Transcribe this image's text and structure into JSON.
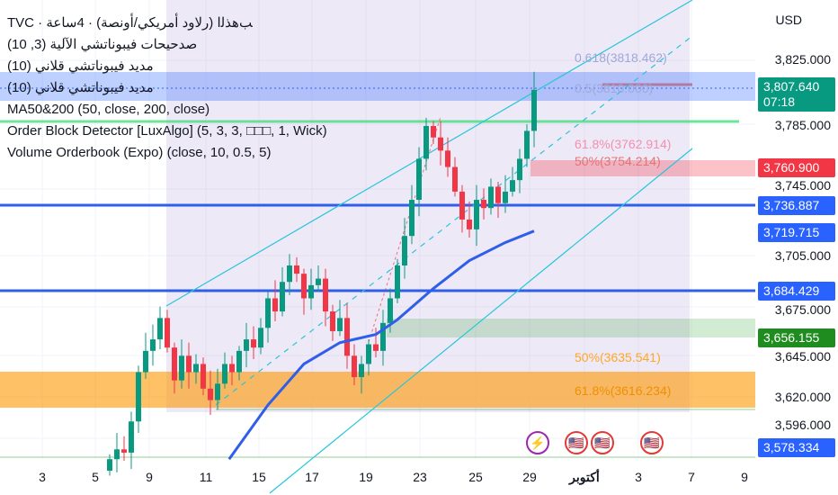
{
  "legend": [
    "TVC · ﺐﻫﺬﻟﺍ (ﺭﻻﻭﺩ ﺃﻣﺮﻳﻜﻲ/ﺃﻭﻧﺼﺔ) · 4ﺳﺎﻋﺔ",
    "ﺻﺪﺣﻴﺤﺎﺕ ﻓﻴﺒﻮﻧﺎﺗﺸﻲ ﺍﻵﻟﻴﺔ (3, 10)",
    "ﻣﺪﻳﺪ ﻓﻴﺒﻮﻧﺎﺗﺸﻲ ﻗﻠﺎﻧﻲ (10)",
    "ﻣﺪﻳﺪ ﻓﻴﺒﻮﻧﺎﺗﺸﻲ ﻗﻠﺎﻧﻲ (10)",
    "MA50&200 (50, close, 200, close)",
    "Order Block Detector [LuxAlgo] (5, 3, 3, □□□, 1, Wick)",
    "Volume Orderbook (Expo) (close, 10, 0.5, 5)"
  ],
  "currency": "USD",
  "price_axis": [
    "3,825.000",
    "3,785.000",
    "3,745.000",
    "3,705.000",
    "3,675.000",
    "3,645.000",
    "3,620.000",
    "3,596.000"
  ],
  "price_tags": [
    {
      "value": "3,807.640",
      "sub": "07:18",
      "color": "#089981"
    },
    {
      "value": "3,760.900",
      "color": "#f23645"
    },
    {
      "value": "3,736.887",
      "color": "#2962ff"
    },
    {
      "value": "3,719.715",
      "color": "#2962ff"
    },
    {
      "value": "3,684.429",
      "color": "#2962ff"
    },
    {
      "value": "3,656.155",
      "color": "#1e8c1e"
    },
    {
      "value": "3,578.334",
      "color": "#2962ff"
    }
  ],
  "fib_labels": [
    "0.618(3818.462)",
    "0.5(3810.000)",
    "61.8%(3762.914)",
    "50%(3754.214)",
    "50%(3635.541)",
    "61.8%(3616.234)"
  ],
  "x_axis": [
    "3",
    "5",
    "9",
    "11",
    "15",
    "17",
    "19",
    "23",
    "25",
    "29",
    "أكتوبر",
    "3",
    "7",
    "9"
  ],
  "events": [
    "lightning-icon",
    "us-flag-icon",
    "us-flag-icon",
    "us-flag-icon"
  ],
  "chart_data": {
    "type": "candlestick",
    "title": "TVC Gold 4h",
    "ylim": [
      3565,
      3862
    ],
    "closes": [
      3582,
      3588,
      3586,
      3605,
      3635,
      3648,
      3655,
      3668,
      3650,
      3630,
      3645,
      3635,
      3640,
      3625,
      3618,
      3628,
      3640,
      3635,
      3648,
      3655,
      3650,
      3662,
      3680,
      3672,
      3690,
      3700,
      3695,
      3680,
      3688,
      3692,
      3672,
      3660,
      3668,
      3645,
      3632,
      3640,
      3652,
      3648,
      3665,
      3680,
      3700,
      3718,
      3740,
      3765,
      3785,
      3778,
      3770,
      3760,
      3745,
      3728,
      3722,
      3740,
      3735,
      3748,
      3738,
      3745,
      3752,
      3765,
      3782,
      3807
    ],
    "first_open": 3575,
    "ma50": [
      [
        16.6,
        3582
      ],
      [
        22,
        3615
      ],
      [
        27,
        3640
      ],
      [
        32,
        3653
      ],
      [
        37,
        3658
      ],
      [
        40,
        3667
      ],
      [
        45,
        3686
      ],
      [
        50,
        3703
      ],
      [
        55,
        3714
      ],
      [
        59,
        3721
      ]
    ],
    "colors": {
      "up": "#089981",
      "down": "#f23645",
      "ma": "#2f5ee8"
    }
  }
}
